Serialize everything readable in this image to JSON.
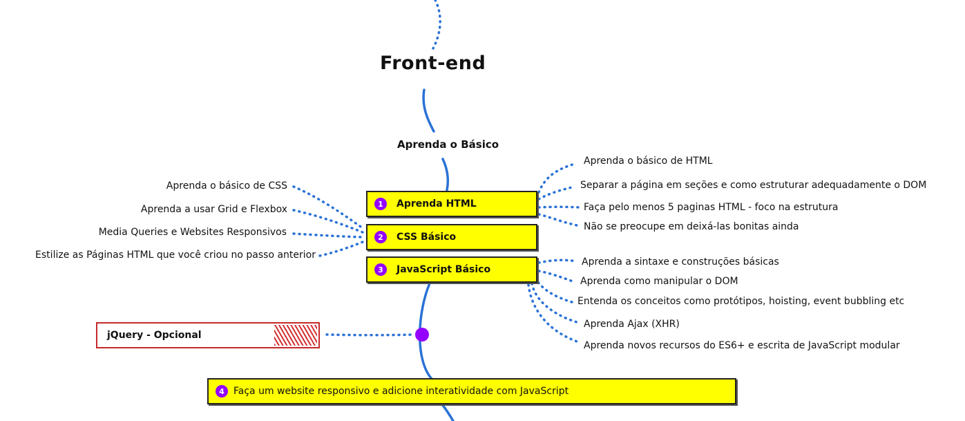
{
  "title": "Front-end",
  "subtitle": "Aprenda o Básico",
  "colors": {
    "line": "#2a72d6",
    "box_fill": "#ffff00",
    "badge": "#9400ff",
    "optional_border": "#c62828"
  },
  "steps": [
    {
      "number": "1",
      "label": "Aprenda HTML"
    },
    {
      "number": "2",
      "label": "CSS Básico"
    },
    {
      "number": "3",
      "label": "JavaScript Básico"
    },
    {
      "number": "4",
      "label": "Faça um website responsivo e adicione interatividade com JavaScript"
    }
  ],
  "html_topics": [
    "Aprenda o básico de HTML",
    "Separar a página em seções e como estruturar adequadamente o DOM",
    "Faça pelo menos 5 paginas HTML - foco na estrutura",
    "Não se preocupe em deixá-las bonitas ainda"
  ],
  "css_topics": [
    "Aprenda o básico de CSS",
    "Aprenda a usar Grid e Flexbox",
    "Media Queries e Websites Responsivos",
    "Estilize as Páginas HTML que você criou no passo anterior"
  ],
  "js_topics": [
    "Aprenda a sintaxe e construções básicas",
    "Aprenda como manipular o DOM",
    "Entenda os conceitos como protótipos, hoisting, event bubbling etc",
    "Aprenda Ajax (XHR)",
    "Aprenda novos recursos do ES6+ e escrita de JavaScript modular"
  ],
  "optional": "jQuery - Opcional"
}
